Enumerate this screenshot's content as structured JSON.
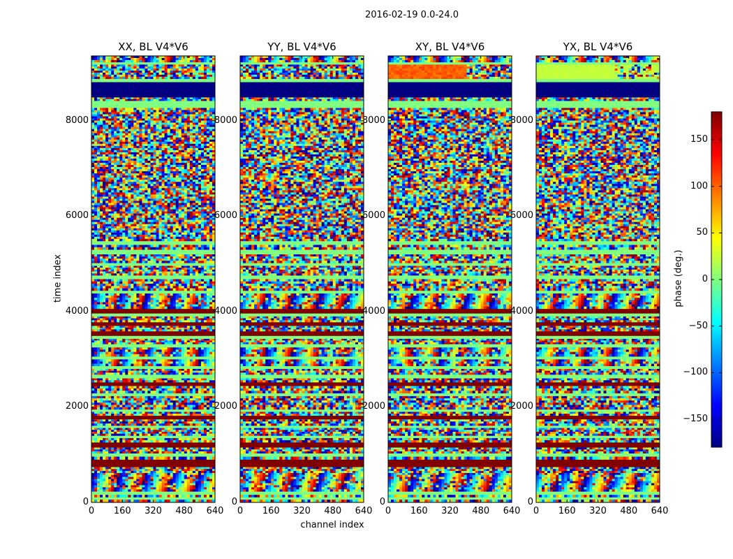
{
  "chart_data": {
    "type": "heatmap",
    "suptitle": "2016-02-19 0.0-24.0",
    "panels": [
      {
        "title": "XX, BL V4*V6",
        "polarization": "XX"
      },
      {
        "title": "YY, BL V4*V6",
        "polarization": "YY"
      },
      {
        "title": "XY, BL V4*V6",
        "polarization": "XY"
      },
      {
        "title": "YX, BL V4*V6",
        "polarization": "YX"
      }
    ],
    "xlabel": "channel index",
    "ylabel": "time index",
    "xlim": [
      0,
      640
    ],
    "ylim": [
      0,
      9360
    ],
    "xticks": [
      0,
      160,
      320,
      480,
      640
    ],
    "yticks": [
      0,
      2000,
      4000,
      6000,
      8000
    ],
    "colorbar": {
      "label": "phase (deg.)",
      "range": [
        -180,
        180
      ],
      "ticks": [
        -150,
        -100,
        -50,
        0,
        50,
        100,
        150
      ],
      "tick_labels": [
        "−150",
        "−100",
        "−50",
        "0",
        "50",
        "100",
        "150"
      ],
      "colormap": "jet"
    },
    "bands": [
      {
        "t0": 0,
        "t1": 60,
        "kind": "noise"
      },
      {
        "t0": 60,
        "t1": 110,
        "kind": "zero"
      },
      {
        "t0": 110,
        "t1": 160,
        "kind": "noise"
      },
      {
        "t0": 160,
        "t1": 230,
        "kind": "zero"
      },
      {
        "t0": 230,
        "t1": 620,
        "kind": "fringe"
      },
      {
        "t0": 620,
        "t1": 740,
        "kind": "noise"
      },
      {
        "t0": 740,
        "t1": 900,
        "kind": "wrap"
      },
      {
        "t0": 900,
        "t1": 960,
        "kind": "noise"
      },
      {
        "t0": 960,
        "t1": 1030,
        "kind": "zero"
      },
      {
        "t0": 1030,
        "t1": 1150,
        "kind": "noise"
      },
      {
        "t0": 1150,
        "t1": 1260,
        "kind": "wrap"
      },
      {
        "t0": 1260,
        "t1": 1350,
        "kind": "noise"
      },
      {
        "t0": 1350,
        "t1": 1400,
        "kind": "zero"
      },
      {
        "t0": 1400,
        "t1": 1560,
        "kind": "noise"
      },
      {
        "t0": 1560,
        "t1": 1610,
        "kind": "zero"
      },
      {
        "t0": 1610,
        "t1": 1740,
        "kind": "noise"
      },
      {
        "t0": 1740,
        "t1": 1820,
        "kind": "wrap"
      },
      {
        "t0": 1820,
        "t1": 1900,
        "kind": "noise"
      },
      {
        "t0": 1900,
        "t1": 1950,
        "kind": "zero"
      },
      {
        "t0": 1950,
        "t1": 2230,
        "kind": "noise"
      },
      {
        "t0": 2230,
        "t1": 2290,
        "kind": "zero"
      },
      {
        "t0": 2290,
        "t1": 2440,
        "kind": "noise"
      },
      {
        "t0": 2440,
        "t1": 2520,
        "kind": "wrap"
      },
      {
        "t0": 2520,
        "t1": 2600,
        "kind": "noise"
      },
      {
        "t0": 2600,
        "t1": 2680,
        "kind": "zero"
      },
      {
        "t0": 2680,
        "t1": 2800,
        "kind": "noise"
      },
      {
        "t0": 2800,
        "t1": 2860,
        "kind": "zero"
      },
      {
        "t0": 2860,
        "t1": 3000,
        "kind": "fringe"
      },
      {
        "t0": 3000,
        "t1": 3060,
        "kind": "zero"
      },
      {
        "t0": 3060,
        "t1": 3250,
        "kind": "fringe"
      },
      {
        "t0": 3250,
        "t1": 3320,
        "kind": "zero"
      },
      {
        "t0": 3320,
        "t1": 3430,
        "kind": "noise"
      },
      {
        "t0": 3430,
        "t1": 3490,
        "kind": "zero"
      },
      {
        "t0": 3490,
        "t1": 3590,
        "kind": "wrap"
      },
      {
        "t0": 3590,
        "t1": 3700,
        "kind": "noise"
      },
      {
        "t0": 3700,
        "t1": 3780,
        "kind": "wrap"
      },
      {
        "t0": 3780,
        "t1": 3900,
        "kind": "noise"
      },
      {
        "t0": 3900,
        "t1": 3960,
        "kind": "zero"
      },
      {
        "t0": 3960,
        "t1": 4060,
        "kind": "wrap"
      },
      {
        "t0": 4060,
        "t1": 4380,
        "kind": "fringe"
      },
      {
        "t0": 4380,
        "t1": 4440,
        "kind": "zero"
      },
      {
        "t0": 4440,
        "t1": 4680,
        "kind": "noise"
      },
      {
        "t0": 4680,
        "t1": 4760,
        "kind": "zero"
      },
      {
        "t0": 4760,
        "t1": 4960,
        "kind": "noise"
      },
      {
        "t0": 4960,
        "t1": 5020,
        "kind": "zero"
      },
      {
        "t0": 5020,
        "t1": 5200,
        "kind": "noise"
      },
      {
        "t0": 5200,
        "t1": 5300,
        "kind": "zero"
      },
      {
        "t0": 5300,
        "t1": 5400,
        "kind": "noise"
      },
      {
        "t0": 5400,
        "t1": 5480,
        "kind": "zero"
      },
      {
        "t0": 5480,
        "t1": 8270,
        "kind": "noise"
      },
      {
        "t0": 8270,
        "t1": 8420,
        "kind": "zero"
      },
      {
        "t0": 8420,
        "t1": 8490,
        "kind": "noise"
      },
      {
        "t0": 8490,
        "t1": 8810,
        "kind": "blank"
      },
      {
        "t0": 8810,
        "t1": 8880,
        "kind": "zero"
      },
      {
        "t0": 8880,
        "t1": 9180,
        "kind": "top"
      },
      {
        "t0": 9180,
        "t1": 9230,
        "kind": "zero"
      },
      {
        "t0": 9230,
        "t1": 9360,
        "kind": "fringe"
      }
    ]
  }
}
